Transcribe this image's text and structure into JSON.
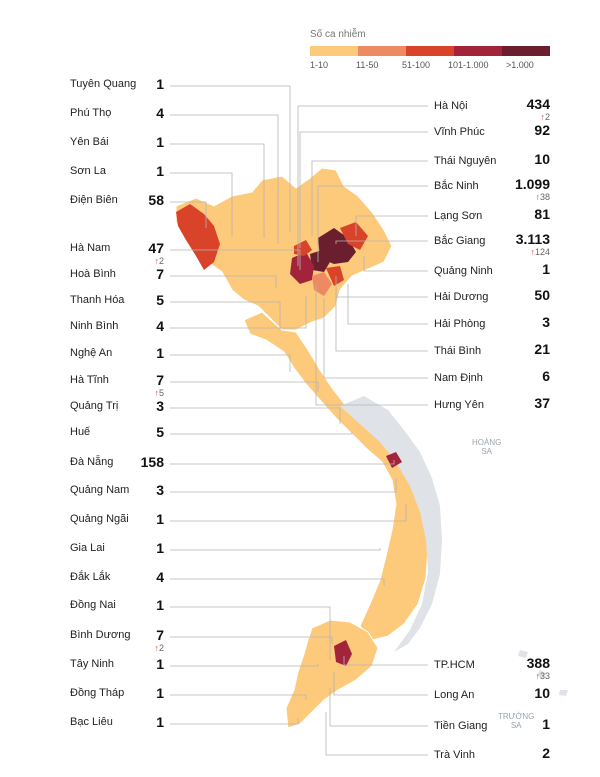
{
  "legend": {
    "title": "Số ca nhiễm",
    "bins": [
      {
        "label": "1-10",
        "color": "#fdc97a"
      },
      {
        "label": "11-50",
        "color": "#ee8a62"
      },
      {
        "label": "51-100",
        "color": "#d9432a"
      },
      {
        "label": "101-1.000",
        "color": "#a3243a"
      },
      {
        "label": ">1.000",
        "color": "#6b1f2e"
      }
    ]
  },
  "map_colors": {
    "land": "#dfe3e8",
    "line": "#b5b5b5"
  },
  "sea_labels": {
    "hoang_sa": [
      "HOÀNG",
      "SA"
    ],
    "truong_sa": [
      "TRƯỜNG",
      "SA"
    ]
  },
  "provinces_left": [
    {
      "name": "Tuyên Quang",
      "cases": "1",
      "delta": ""
    },
    {
      "name": "Phú Thọ",
      "cases": "4",
      "delta": ""
    },
    {
      "name": "Yên Bái",
      "cases": "1",
      "delta": ""
    },
    {
      "name": "Sơn La",
      "cases": "1",
      "delta": ""
    },
    {
      "name": "Điện Biên",
      "cases": "58",
      "delta": ""
    },
    {
      "name": "Hà Nam",
      "cases": "47",
      "delta": "2"
    },
    {
      "name": "Hoà Bình",
      "cases": "7",
      "delta": ""
    },
    {
      "name": "Thanh Hóa",
      "cases": "5",
      "delta": ""
    },
    {
      "name": "Ninh Bình",
      "cases": "4",
      "delta": ""
    },
    {
      "name": "Nghệ An",
      "cases": "1",
      "delta": ""
    },
    {
      "name": "Hà Tĩnh",
      "cases": "7",
      "delta": "5"
    },
    {
      "name": "Quảng Trị",
      "cases": "3",
      "delta": ""
    },
    {
      "name": "Huế",
      "cases": "5",
      "delta": ""
    },
    {
      "name": "Đà Nẵng",
      "cases": "158",
      "delta": ""
    },
    {
      "name": "Quảng Nam",
      "cases": "3",
      "delta": ""
    },
    {
      "name": "Quảng Ngãi",
      "cases": "1",
      "delta": ""
    },
    {
      "name": "Gia Lai",
      "cases": "1",
      "delta": ""
    },
    {
      "name": "Đắk Lắk",
      "cases": "4",
      "delta": ""
    },
    {
      "name": "Đồng Nai",
      "cases": "1",
      "delta": ""
    },
    {
      "name": "Bình Dương",
      "cases": "7",
      "delta": "2"
    },
    {
      "name": "Tây Ninh",
      "cases": "1",
      "delta": ""
    },
    {
      "name": "Đồng Tháp",
      "cases": "1",
      "delta": ""
    },
    {
      "name": "Bạc Liêu",
      "cases": "1",
      "delta": ""
    }
  ],
  "provinces_right": [
    {
      "name": "Hà Nội",
      "cases": "434",
      "delta": "2"
    },
    {
      "name": "Vĩnh Phúc",
      "cases": "92",
      "delta": ""
    },
    {
      "name": "Thái Nguyên",
      "cases": "10",
      "delta": ""
    },
    {
      "name": "Bắc Ninh",
      "cases": "1.099",
      "delta": "38"
    },
    {
      "name": "Lạng Sơn",
      "cases": "81",
      "delta": ""
    },
    {
      "name": "Bắc Giang",
      "cases": "3.113",
      "delta": "124"
    },
    {
      "name": "Quảng Ninh",
      "cases": "1",
      "delta": ""
    },
    {
      "name": "Hải Dương",
      "cases": "50",
      "delta": ""
    },
    {
      "name": "Hải Phòng",
      "cases": "3",
      "delta": ""
    },
    {
      "name": "Thái Bình",
      "cases": "21",
      "delta": ""
    },
    {
      "name": "Nam Định",
      "cases": "6",
      "delta": ""
    },
    {
      "name": "Hưng Yên",
      "cases": "37",
      "delta": ""
    },
    {
      "name": "TP.HCM",
      "cases": "388",
      "delta": "33"
    },
    {
      "name": "Long An",
      "cases": "10",
      "delta": ""
    },
    {
      "name": "Tiền Giang",
      "cases": "1",
      "delta": ""
    },
    {
      "name": "Trà Vinh",
      "cases": "2",
      "delta": ""
    }
  ]
}
